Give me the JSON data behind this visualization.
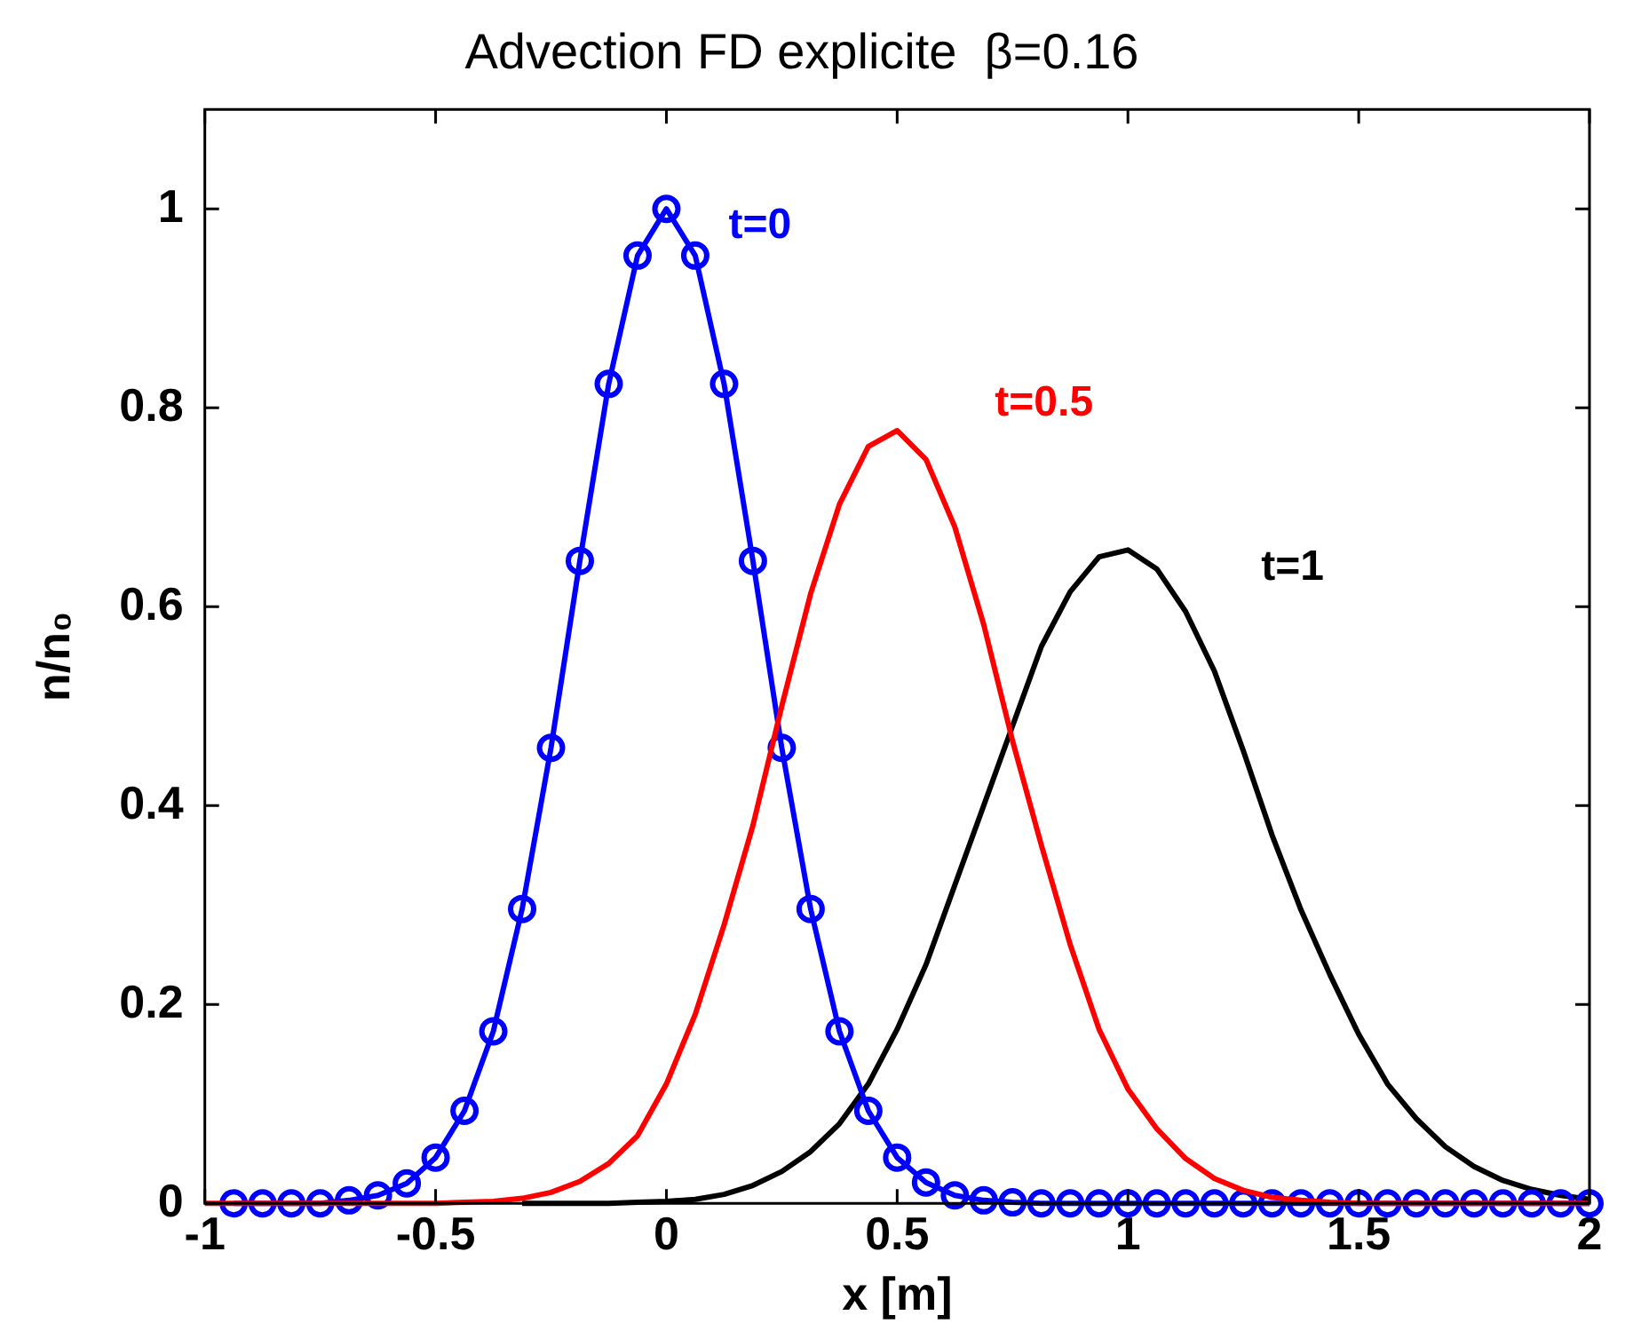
{
  "chart_data": {
    "type": "line",
    "title": "Advection FD explicite  β=0.16",
    "xlabel": "x [m]",
    "ylabel": "n/n₀",
    "x": [
      -1,
      -0.9375,
      -0.875,
      -0.8125,
      -0.75,
      -0.6875,
      -0.625,
      -0.5625,
      -0.5,
      -0.4375,
      -0.375,
      -0.3125,
      -0.25,
      -0.1875,
      -0.125,
      -0.0625,
      0,
      0.0625,
      0.125,
      0.1875,
      0.25,
      0.3125,
      0.375,
      0.4375,
      0.5,
      0.5625,
      0.625,
      0.6875,
      0.75,
      0.8125,
      0.875,
      0.9375,
      1,
      1.0625,
      1.125,
      1.1875,
      1.25,
      1.3125,
      1.375,
      1.4375,
      1.5,
      1.5625,
      1.625,
      1.6875,
      1.75,
      1.8125,
      1.875,
      1.9375,
      2
    ],
    "series": [
      {
        "name": "t=0",
        "color": "#0000ff",
        "marker": "circle",
        "x": [
          -0.9375,
          -0.875,
          -0.8125,
          -0.75,
          -0.6875,
          -0.625,
          -0.5625,
          -0.5,
          -0.4375,
          -0.375,
          -0.3125,
          -0.25,
          -0.1875,
          -0.125,
          -0.0625,
          0,
          0.0625,
          0.125,
          0.1875,
          0.25,
          0.3125,
          0.375,
          0.4375,
          0.5,
          0.5625,
          0.625,
          0.6875,
          0.75,
          0.8125,
          0.875,
          0.9375,
          1,
          1.0625,
          1.125,
          1.1875,
          1.25,
          1.3125,
          1.375,
          1.4375,
          1.5,
          1.5625,
          1.625,
          1.6875,
          1.75,
          1.8125,
          1.875,
          1.9375,
          2
        ],
        "values": [
          0,
          0,
          0,
          0,
          0.003,
          0.008,
          0.02,
          0.046,
          0.093,
          0.173,
          0.296,
          0.458,
          0.646,
          0.824,
          0.953,
          1,
          0.953,
          0.824,
          0.646,
          0.458,
          0.296,
          0.173,
          0.093,
          0.046,
          0.021,
          0.008,
          0.003,
          0.001,
          0,
          0,
          0,
          0,
          0,
          0,
          0,
          0,
          0,
          0,
          0,
          0,
          0,
          0,
          0,
          0,
          0,
          0,
          0,
          0
        ]
      },
      {
        "name": "t=0.5",
        "color": "#ff0000",
        "marker": "none",
        "values": [
          0,
          0,
          0,
          0,
          0,
          0,
          0,
          0,
          0,
          0.001,
          0.002,
          0.005,
          0.011,
          0.022,
          0.04,
          0.068,
          0.12,
          0.19,
          0.28,
          0.38,
          0.5,
          0.613,
          0.703,
          0.761,
          0.777,
          0.748,
          0.68,
          0.582,
          0.465,
          0.36,
          0.26,
          0.175,
          0.115,
          0.075,
          0.045,
          0.025,
          0.013,
          0.006,
          0.003,
          0.001,
          0,
          0,
          0,
          0,
          0,
          0,
          0,
          0,
          0
        ]
      },
      {
        "name": "t=1",
        "color": "#000000",
        "marker": "none",
        "values": [
          null,
          null,
          null,
          null,
          null,
          null,
          null,
          null,
          null,
          null,
          null,
          0,
          0,
          0,
          0,
          0.001,
          0.002,
          0.004,
          0.009,
          0.018,
          0.032,
          0.052,
          0.08,
          0.12,
          0.175,
          0.24,
          0.32,
          0.4,
          0.48,
          0.56,
          0.615,
          0.65,
          0.657,
          0.638,
          0.595,
          0.535,
          0.455,
          0.37,
          0.295,
          0.23,
          0.17,
          0.12,
          0.085,
          0.057,
          0.037,
          0.023,
          0.014,
          0.008,
          0.004
        ]
      }
    ],
    "xlim": [
      -1,
      2
    ],
    "xticks": [
      -1,
      -0.5,
      0,
      0.5,
      1,
      1.5,
      2
    ],
    "ylim": [
      0,
      1.1
    ],
    "yticks": [
      0,
      0.2,
      0.4,
      0.6,
      0.8,
      1
    ],
    "grid": false,
    "legend": false,
    "line_style": "solid"
  }
}
